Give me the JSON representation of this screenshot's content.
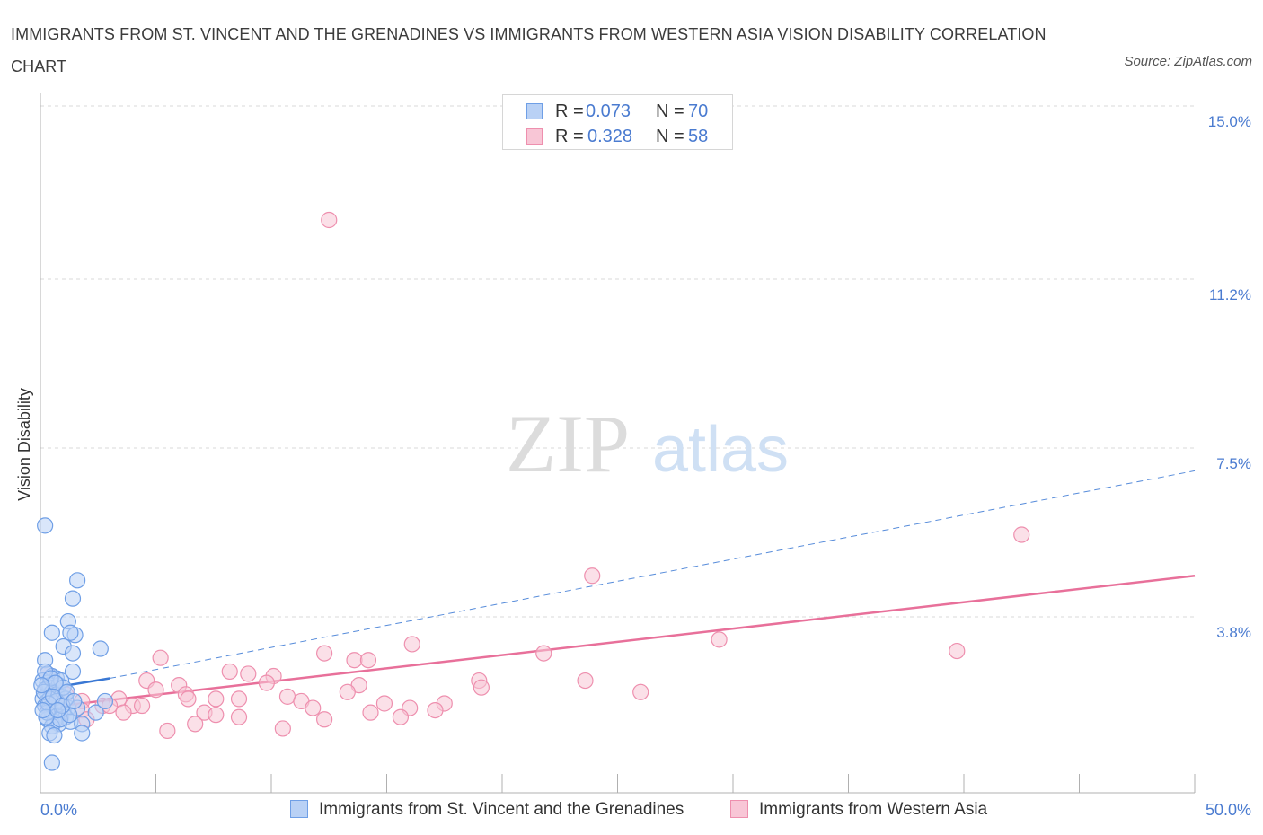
{
  "header": {
    "title": "IMMIGRANTS FROM ST. VINCENT AND THE GRENADINES VS IMMIGRANTS FROM WESTERN ASIA VISION DISABILITY CORRELATION CHART",
    "source": "Source: ZipAtlas.com"
  },
  "watermark": {
    "zip": "ZIP",
    "atlas": "atlas"
  },
  "legend": {
    "r_label": "R =",
    "n_label": "N =",
    "series1": {
      "r": "0.073",
      "n": "70"
    },
    "series2": {
      "r": "0.328",
      "n": "58"
    }
  },
  "colors": {
    "blue_fill": "#b9d1f5",
    "blue_stroke": "#6f9fe6",
    "blue_line": "#3a78d4",
    "pink_fill": "#f8c6d6",
    "pink_stroke": "#ee8fae",
    "pink_line": "#e8709a",
    "axis_text": "#4a7bd0",
    "grid": "#d8d8d8"
  },
  "chart_data": {
    "type": "scatter",
    "title": "Immigrants from St. Vincent and the Grenadines vs Immigrants from Western Asia Vision Disability Correlation Chart",
    "xlabel": "",
    "ylabel": "Vision Disability",
    "xlim": [
      0,
      50
    ],
    "ylim": [
      0,
      15
    ],
    "x_tick_labels": [
      "0.0%",
      "50.0%"
    ],
    "y_ticks": [
      3.8,
      7.5,
      11.2,
      15.0
    ],
    "y_tick_labels": [
      "3.8%",
      "7.5%",
      "11.2%",
      "15.0%"
    ],
    "grid": "horizontal dashed",
    "legend_position": "top-center",
    "series": [
      {
        "name": "Immigrants from St. Vincent and the Grenadines",
        "r": 0.073,
        "n": 70,
        "trend": {
          "x": [
            0,
            3
          ],
          "y": [
            2.2,
            2.45
          ],
          "extended_x": [
            3,
            50
          ],
          "extended_y": [
            2.45,
            7.0
          ]
        },
        "points": [
          [
            0.2,
            5.8
          ],
          [
            1.6,
            4.6
          ],
          [
            1.4,
            4.2
          ],
          [
            1.2,
            3.7
          ],
          [
            1.5,
            3.4
          ],
          [
            1.3,
            3.45
          ],
          [
            0.5,
            3.45
          ],
          [
            1.0,
            3.15
          ],
          [
            2.6,
            3.1
          ],
          [
            1.4,
            3.0
          ],
          [
            0.2,
            2.85
          ],
          [
            1.4,
            2.6
          ],
          [
            0.3,
            2.55
          ],
          [
            0.5,
            2.5
          ],
          [
            0.7,
            2.45
          ],
          [
            0.1,
            2.4
          ],
          [
            0.3,
            2.35
          ],
          [
            0.4,
            2.3
          ],
          [
            0.6,
            2.25
          ],
          [
            0.8,
            2.3
          ],
          [
            0.2,
            2.2
          ],
          [
            0.5,
            2.15
          ],
          [
            0.7,
            2.1
          ],
          [
            0.9,
            2.05
          ],
          [
            0.1,
            2.0
          ],
          [
            0.3,
            1.95
          ],
          [
            0.6,
            1.9
          ],
          [
            0.2,
            1.85
          ],
          [
            0.4,
            1.8
          ],
          [
            0.8,
            1.85
          ],
          [
            1.2,
            1.8
          ],
          [
            1.0,
            1.75
          ],
          [
            0.5,
            1.7
          ],
          [
            0.7,
            1.65
          ],
          [
            0.9,
            1.6
          ],
          [
            1.1,
            1.6
          ],
          [
            0.3,
            1.55
          ],
          [
            0.6,
            1.5
          ],
          [
            1.3,
            1.5
          ],
          [
            0.8,
            1.45
          ],
          [
            0.5,
            1.4
          ],
          [
            1.8,
            1.45
          ],
          [
            2.4,
            1.7
          ],
          [
            2.8,
            1.95
          ],
          [
            1.6,
            1.8
          ],
          [
            0.4,
            1.25
          ],
          [
            0.6,
            1.2
          ],
          [
            1.8,
            1.25
          ],
          [
            0.5,
            0.6
          ],
          [
            0.2,
            2.6
          ],
          [
            0.9,
            2.4
          ],
          [
            0.4,
            2.0
          ],
          [
            1.1,
            2.0
          ],
          [
            0.3,
            1.7
          ],
          [
            0.7,
            1.95
          ],
          [
            1.0,
            2.25
          ],
          [
            0.15,
            2.15
          ],
          [
            0.45,
            2.45
          ],
          [
            0.85,
            1.55
          ],
          [
            1.25,
            1.65
          ],
          [
            0.35,
            1.9
          ],
          [
            0.65,
            2.35
          ],
          [
            0.25,
            1.6
          ],
          [
            0.55,
            2.05
          ],
          [
            0.95,
            1.85
          ],
          [
            1.15,
            2.15
          ],
          [
            0.05,
            2.3
          ],
          [
            0.75,
            1.75
          ],
          [
            1.45,
            1.95
          ],
          [
            0.1,
            1.75
          ]
        ]
      },
      {
        "name": "Immigrants from Western Asia",
        "r": 0.328,
        "n": 58,
        "trend": {
          "x": [
            0,
            50
          ],
          "y": [
            1.8,
            4.7
          ]
        },
        "points": [
          [
            12.5,
            12.5
          ],
          [
            42.5,
            5.6
          ],
          [
            23.9,
            4.7
          ],
          [
            29.4,
            3.3
          ],
          [
            39.7,
            3.05
          ],
          [
            16.1,
            3.2
          ],
          [
            21.8,
            3.0
          ],
          [
            12.3,
            3.0
          ],
          [
            5.2,
            2.9
          ],
          [
            13.6,
            2.85
          ],
          [
            14.2,
            2.85
          ],
          [
            8.2,
            2.6
          ],
          [
            9.0,
            2.55
          ],
          [
            10.1,
            2.5
          ],
          [
            19.0,
            2.4
          ],
          [
            23.6,
            2.4
          ],
          [
            4.6,
            2.4
          ],
          [
            9.8,
            2.35
          ],
          [
            13.8,
            2.3
          ],
          [
            6.0,
            2.3
          ],
          [
            5.0,
            2.2
          ],
          [
            19.1,
            2.25
          ],
          [
            26.0,
            2.15
          ],
          [
            13.3,
            2.15
          ],
          [
            10.7,
            2.05
          ],
          [
            6.3,
            2.1
          ],
          [
            6.4,
            2.0
          ],
          [
            7.6,
            2.0
          ],
          [
            8.6,
            2.0
          ],
          [
            11.3,
            1.95
          ],
          [
            14.9,
            1.9
          ],
          [
            17.5,
            1.9
          ],
          [
            3.4,
            2.0
          ],
          [
            1.8,
            1.95
          ],
          [
            2.7,
            1.85
          ],
          [
            3.0,
            1.85
          ],
          [
            4.0,
            1.85
          ],
          [
            4.4,
            1.85
          ],
          [
            11.8,
            1.8
          ],
          [
            14.3,
            1.7
          ],
          [
            16.0,
            1.8
          ],
          [
            7.1,
            1.7
          ],
          [
            7.6,
            1.65
          ],
          [
            17.1,
            1.75
          ],
          [
            1.8,
            1.75
          ],
          [
            3.6,
            1.7
          ],
          [
            15.6,
            1.6
          ],
          [
            8.6,
            1.6
          ],
          [
            12.3,
            1.55
          ],
          [
            2.0,
            1.55
          ],
          [
            6.7,
            1.45
          ],
          [
            10.5,
            1.35
          ],
          [
            5.5,
            1.3
          ],
          [
            0.5,
            2.0
          ],
          [
            0.6,
            2.2
          ],
          [
            0.3,
            2.55
          ],
          [
            0.8,
            1.9
          ],
          [
            1.1,
            2.1
          ]
        ]
      }
    ]
  }
}
